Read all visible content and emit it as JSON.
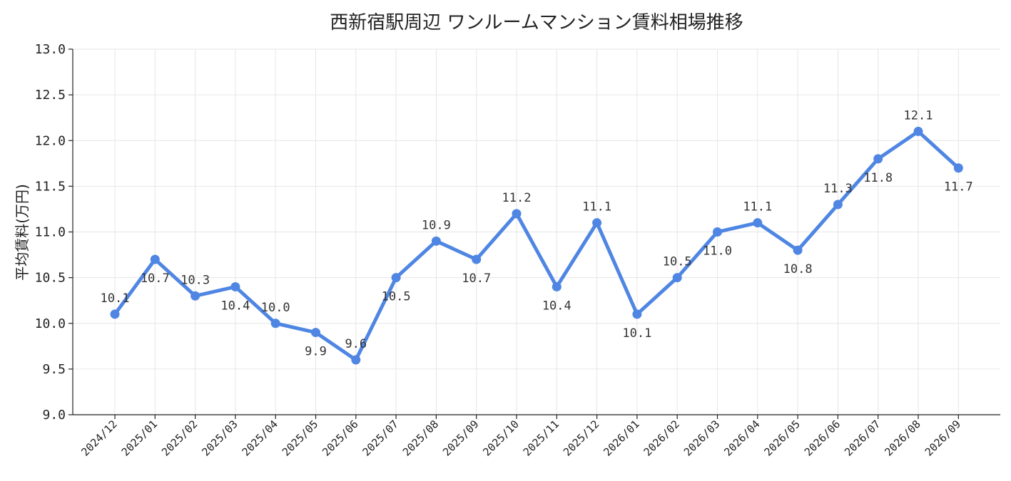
{
  "chart_data": {
    "type": "line",
    "title": "西新宿駅周辺 ワンルームマンション賃料相場推移",
    "xlabel": "",
    "ylabel": "平均賃料(万円)",
    "ylim": [
      9.0,
      13.0
    ],
    "yticks": [
      "9.0",
      "9.5",
      "10.0",
      "10.5",
      "11.0",
      "11.5",
      "12.0",
      "12.5",
      "13.0"
    ],
    "grid": true,
    "categories": [
      "2024/12",
      "2025/01",
      "2025/02",
      "2025/03",
      "2025/04",
      "2025/05",
      "2025/06",
      "2025/07",
      "2025/08",
      "2025/09",
      "2025/10",
      "2025/11",
      "2025/12",
      "2026/01",
      "2026/02",
      "2026/03",
      "2026/04",
      "2026/05",
      "2026/06",
      "2026/07",
      "2026/08",
      "2026/09"
    ],
    "series": [
      {
        "values": [
          10.1,
          10.7,
          10.3,
          10.4,
          10.0,
          9.9,
          9.6,
          10.5,
          10.9,
          10.7,
          11.2,
          10.4,
          11.1,
          10.1,
          10.5,
          11.0,
          11.1,
          10.8,
          11.3,
          11.8,
          12.1,
          11.7
        ],
        "color": "#4f86e3"
      }
    ],
    "data_labels": [
      "10.1",
      "10.7",
      "10.3",
      "10.4",
      "10.0",
      "9.9",
      "9.6",
      "10.5",
      "10.9",
      "10.7",
      "11.2",
      "10.4",
      "11.1",
      "10.1",
      "10.5",
      "11.0",
      "11.1",
      "10.8",
      "11.3",
      "11.8",
      "12.1",
      "11.7"
    ],
    "label_positions": [
      "above",
      "below",
      "above",
      "below",
      "above",
      "below",
      "above",
      "below",
      "above",
      "below",
      "above",
      "below",
      "above",
      "below",
      "above",
      "below",
      "above",
      "below",
      "above",
      "below",
      "above",
      "below"
    ]
  }
}
